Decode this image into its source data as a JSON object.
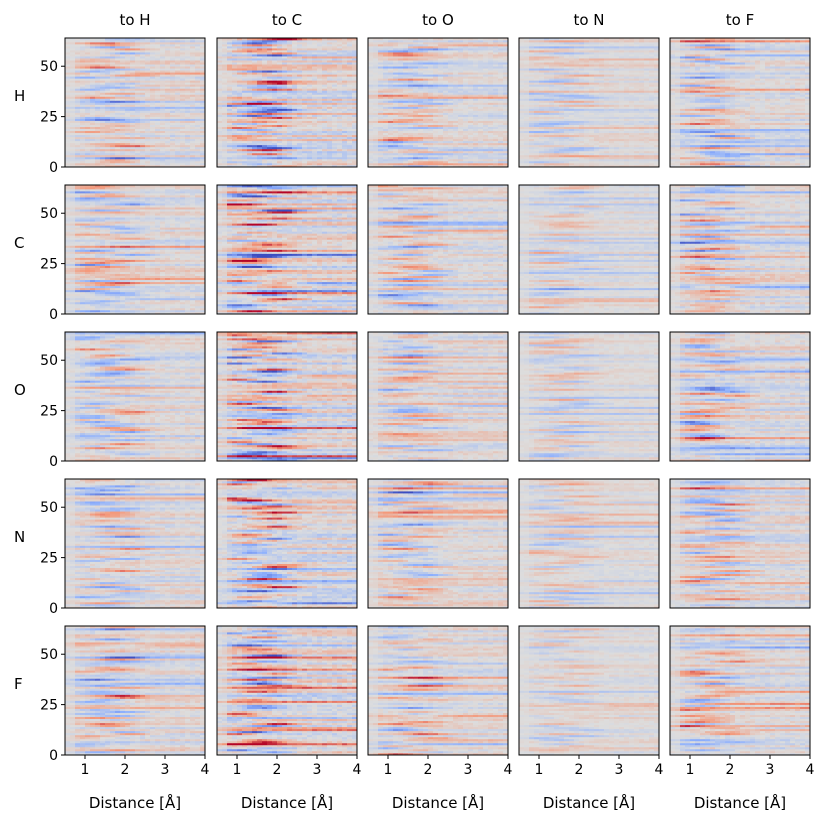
{
  "chart_data": {
    "type": "heatmap",
    "grid": {
      "rows": 5,
      "cols": 5
    },
    "column_titles": [
      "to H",
      "to C",
      "to O",
      "to N",
      "to F"
    ],
    "row_labels": [
      "H",
      "C",
      "O",
      "N",
      "F"
    ],
    "xlabel": "Distance [Å]",
    "xlim": [
      0.5,
      4.0
    ],
    "xticks": [
      1,
      2,
      3,
      4
    ],
    "ylim": [
      0,
      64
    ],
    "yticks": [
      0,
      25,
      50
    ],
    "n_features": 64,
    "n_distance_bins": 28,
    "colormap": "coolwarm",
    "colormap_stops": [
      "#3b4cc0",
      "#8db0fe",
      "#dddddd",
      "#f4987a",
      "#b40426"
    ],
    "value_range": [
      -1,
      1
    ]
  }
}
